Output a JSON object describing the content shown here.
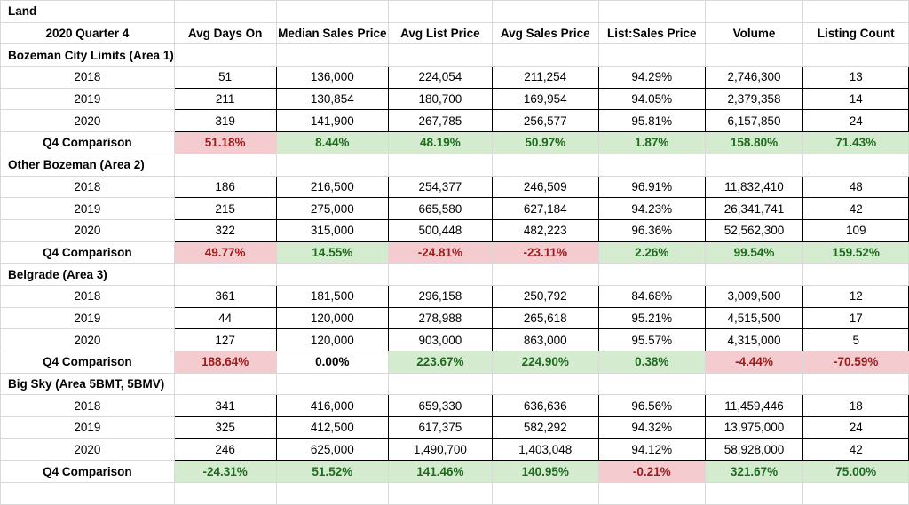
{
  "title": "Land",
  "header": {
    "period": "2020 Quarter 4",
    "columns": [
      "Avg Days On",
      "Median Sales Price",
      "Avg List Price",
      "Avg Sales Price",
      "List:Sales Price",
      "Volume",
      "Listing Count"
    ]
  },
  "sections": [
    {
      "name": "Bozeman City Limits (Area 1)",
      "rows": [
        {
          "year": "2018",
          "values": [
            "51",
            "136,000",
            "224,054",
            "211,254",
            "94.29%",
            "2,746,300",
            "13"
          ]
        },
        {
          "year": "2019",
          "values": [
            "211",
            "130,854",
            "180,700",
            "169,954",
            "94.05%",
            "2,379,358",
            "14"
          ]
        },
        {
          "year": "2020",
          "values": [
            "319",
            "141,900",
            "267,785",
            "256,577",
            "95.81%",
            "6,157,850",
            "24"
          ]
        }
      ],
      "comparison": {
        "label": "Q4 Comparison",
        "values": [
          "51.18%",
          "8.44%",
          "48.19%",
          "50.97%",
          "1.87%",
          "158.80%",
          "71.43%"
        ],
        "status": [
          "neg",
          "pos",
          "pos",
          "pos",
          "pos",
          "pos",
          "pos"
        ]
      }
    },
    {
      "name": "Other Bozeman (Area 2)",
      "rows": [
        {
          "year": "2018",
          "values": [
            "186",
            "216,500",
            "254,377",
            "246,509",
            "96.91%",
            "11,832,410",
            "48"
          ]
        },
        {
          "year": "2019",
          "values": [
            "215",
            "275,000",
            "665,580",
            "627,184",
            "94.23%",
            "26,341,741",
            "42"
          ]
        },
        {
          "year": "2020",
          "values": [
            "322",
            "315,000",
            "500,448",
            "482,223",
            "96.36%",
            "52,562,300",
            "109"
          ]
        }
      ],
      "comparison": {
        "label": "Q4 Comparison",
        "values": [
          "49.77%",
          "14.55%",
          "-24.81%",
          "-23.11%",
          "2.26%",
          "99.54%",
          "159.52%"
        ],
        "status": [
          "neg",
          "pos",
          "neg",
          "neg",
          "pos",
          "pos",
          "pos"
        ]
      }
    },
    {
      "name": "Belgrade (Area 3)",
      "rows": [
        {
          "year": "2018",
          "values": [
            "361",
            "181,500",
            "296,158",
            "250,792",
            "84.68%",
            "3,009,500",
            "12"
          ]
        },
        {
          "year": "2019",
          "values": [
            "44",
            "120,000",
            "278,988",
            "265,618",
            "95.21%",
            "4,515,500",
            "17"
          ]
        },
        {
          "year": "2020",
          "values": [
            "127",
            "120,000",
            "903,000",
            "863,000",
            "95.57%",
            "4,315,000",
            "5"
          ]
        }
      ],
      "comparison": {
        "label": "Q4 Comparison",
        "values": [
          "188.64%",
          "0.00%",
          "223.67%",
          "224.90%",
          "0.38%",
          "-4.44%",
          "-70.59%"
        ],
        "status": [
          "neg",
          "neu",
          "pos",
          "pos",
          "pos",
          "neg",
          "neg"
        ]
      }
    },
    {
      "name": "Big Sky (Area 5BMT, 5BMV)",
      "rows": [
        {
          "year": "2018",
          "values": [
            "341",
            "416,000",
            "659,330",
            "636,636",
            "96.56%",
            "11,459,446",
            "18"
          ]
        },
        {
          "year": "2019",
          "values": [
            "325",
            "412,500",
            "617,375",
            "582,292",
            "94.32%",
            "13,975,000",
            "24"
          ]
        },
        {
          "year": "2020",
          "values": [
            "246",
            "625,000",
            "1,490,700",
            "1,403,048",
            "94.12%",
            "58,928,000",
            "42"
          ]
        }
      ],
      "comparison": {
        "label": "Q4 Comparison",
        "values": [
          "-24.31%",
          "51.52%",
          "141.46%",
          "140.95%",
          "-0.21%",
          "321.67%",
          "75.00%"
        ],
        "status": [
          "pos",
          "pos",
          "pos",
          "pos",
          "neg",
          "pos",
          "pos"
        ]
      }
    }
  ],
  "colors": {
    "positive_bg": "#d4ebd0",
    "positive_text": "#1e6b1e",
    "negative_bg": "#f4cbcf",
    "negative_text": "#9c1c1c"
  }
}
